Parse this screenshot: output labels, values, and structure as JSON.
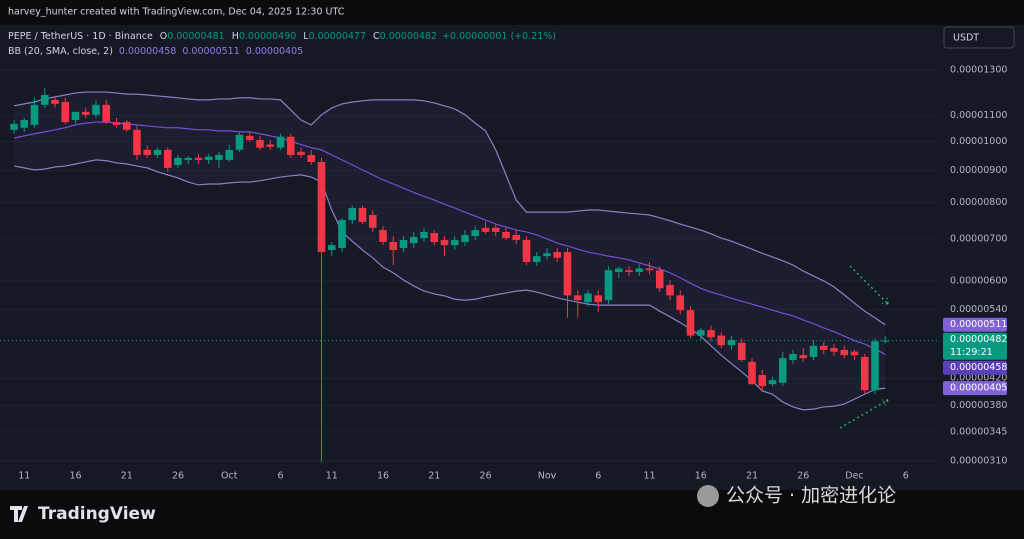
{
  "chart_data": {
    "type": "candlestick",
    "credit": "harvey_hunter created with TradingView.com, Dec 04, 2025 12:30 UTC",
    "currency": "USDT",
    "log_scale": true,
    "grid": true,
    "ylim": [
      3e-06,
      1.533e-05
    ],
    "yticks": [
      {
        "value": 1.3e-05,
        "label": "0.00001300"
      },
      {
        "value": 1.1e-05,
        "label": "0.00001100"
      },
      {
        "value": 1e-05,
        "label": "0.00001000"
      },
      {
        "value": 9e-06,
        "label": "0.00000900"
      },
      {
        "value": 8e-06,
        "label": "0.00000800"
      },
      {
        "value": 7e-06,
        "label": "0.00000700"
      },
      {
        "value": 6e-06,
        "label": "0.00000600"
      },
      {
        "value": 5.4e-06,
        "label": "0.00000540"
      },
      {
        "value": 4.2e-06,
        "label": "0.00000420"
      },
      {
        "value": 3.8e-06,
        "label": "0.00000380"
      },
      {
        "value": 3.45e-06,
        "label": "0.00000345"
      },
      {
        "value": 3.1e-06,
        "label": "0.00000310"
      }
    ],
    "categories": [
      null,
      "11",
      null,
      null,
      null,
      null,
      "16",
      null,
      null,
      null,
      null,
      "21",
      null,
      null,
      null,
      null,
      "26",
      null,
      null,
      null,
      null,
      "Oct",
      null,
      null,
      null,
      null,
      "6",
      null,
      null,
      null,
      null,
      "11",
      null,
      null,
      null,
      null,
      "16",
      null,
      null,
      null,
      null,
      "21",
      null,
      null,
      null,
      null,
      "26",
      null,
      null,
      null,
      null,
      null,
      "Nov",
      null,
      null,
      null,
      null,
      "6",
      null,
      null,
      null,
      null,
      "11",
      null,
      null,
      null,
      null,
      "16",
      null,
      null,
      null,
      null,
      "21",
      null,
      null,
      null,
      null,
      "26",
      null,
      null,
      null,
      null,
      "Dec",
      null,
      null,
      null,
      null,
      "6"
    ],
    "series": [
      {
        "name": "PEPE / TetherUS · 1D · Binance",
        "up_color": "#089981",
        "down_color": "#f23645",
        "open": [
          1.044e-05,
          1.052e-05,
          1.063e-05,
          1.144e-05,
          1.165e-05,
          1.156e-05,
          1.082e-05,
          1.115e-05,
          1.103e-05,
          1.144e-05,
          1.074e-05,
          1.074e-05,
          1.044e-05,
          9.7e-06,
          9.52e-06,
          9.7e-06,
          9.18e-06,
          9.35e-06,
          9.42e-06,
          9.35e-06,
          9.35e-06,
          9.35e-06,
          9.7e-06,
          1.021e-05,
          1.006e-05,
          9.89e-06,
          9.78e-06,
          1.018e-05,
          9.63e-06,
          9.52e-06,
          9.28e-06,
          6.72e-06,
          6.77e-06,
          7.5e-06,
          7.84e-06,
          7.64e-06,
          7.23e-06,
          6.92e-06,
          6.77e-06,
          6.89e-06,
          7.02e-06,
          7.15e-06,
          6.97e-06,
          6.84e-06,
          6.92e-06,
          7.07e-06,
          7.29e-06,
          7.29e-06,
          7.18e-06,
          7.1e-06,
          6.97e-06,
          6.43e-06,
          6.57e-06,
          6.67e-06,
          6.67e-06,
          5.69e-06,
          5.55e-06,
          5.69e-06,
          5.59e-06,
          6.2e-06,
          6.24e-06,
          6.2e-06,
          6.28e-06,
          6.24e-06,
          5.91e-06,
          5.69e-06,
          5.39e-06,
          4.91e-06,
          5.01e-06,
          4.91e-06,
          4.74e-06,
          4.78e-06,
          4.46e-06,
          4.25e-06,
          4.11e-06,
          4.13e-06,
          4.49e-06,
          4.57e-06,
          4.54e-06,
          4.73e-06,
          4.69e-06,
          4.66e-06,
          4.63e-06,
          4.54e-06,
          4.02e-06,
          4.81e-06,
          null,
          null
        ],
        "high": [
          1.082e-05,
          1.09e-05,
          1.174e-05,
          1.217e-05,
          1.182e-05,
          1.174e-05,
          1.115e-05,
          1.132e-05,
          1.165e-05,
          1.165e-05,
          1.09e-05,
          1.082e-05,
          1.059e-05,
          9.85e-06,
          9.78e-06,
          9.78e-06,
          9.52e-06,
          9.49e-06,
          9.56e-06,
          9.56e-06,
          9.63e-06,
          9.89e-06,
          1.036e-05,
          1.036e-05,
          1.021e-05,
          1.006e-05,
          1.029e-05,
          1.029e-05,
          9.78e-06,
          9.7e-06,
          9.42e-06,
          6.92e-06,
          7.56e-06,
          7.92e-06,
          7.92e-06,
          7.78e-06,
          7.34e-06,
          7.07e-06,
          7.07e-06,
          7.18e-06,
          7.29e-06,
          7.23e-06,
          7.07e-06,
          7.07e-06,
          7.23e-06,
          7.34e-06,
          7.45e-06,
          7.39e-06,
          7.29e-06,
          7.23e-06,
          7.07e-06,
          6.67e-06,
          6.77e-06,
          6.77e-06,
          6.77e-06,
          5.8e-06,
          5.8e-06,
          5.8e-06,
          6.33e-06,
          6.33e-06,
          6.33e-06,
          6.38e-06,
          6.43e-06,
          6.33e-06,
          6.02e-06,
          5.8e-06,
          5.47e-06,
          5.05e-06,
          5.09e-06,
          4.97e-06,
          4.9e-06,
          4.86e-06,
          4.52e-06,
          4.33e-06,
          4.22e-06,
          4.63e-06,
          4.66e-06,
          4.69e-06,
          4.83e-06,
          4.8e-06,
          4.76e-06,
          4.73e-06,
          4.66e-06,
          4.59e-06,
          4.86e-06,
          4.9e-06,
          null,
          null
        ],
        "low": [
          1.029e-05,
          1.036e-05,
          1.052e-05,
          1.132e-05,
          1.132e-05,
          1.067e-05,
          1.067e-05,
          1.09e-05,
          1.09e-05,
          1.067e-05,
          1.052e-05,
          1.036e-05,
          9.35e-06,
          9.42e-06,
          9.42e-06,
          8.95e-06,
          9.08e-06,
          9.21e-06,
          9.21e-06,
          9.21e-06,
          9.08e-06,
          9.28e-06,
          9.63e-06,
          9.99e-06,
          9.7e-06,
          9.7e-06,
          9.7e-06,
          9.42e-06,
          9.42e-06,
          9.18e-06,
          3.09e-06,
          6.57e-06,
          6.67e-06,
          7.39e-06,
          7.39e-06,
          7.18e-06,
          6.84e-06,
          6.36e-06,
          6.67e-06,
          6.77e-06,
          6.92e-06,
          6.84e-06,
          6.57e-06,
          6.72e-06,
          6.82e-06,
          6.97e-06,
          7.13e-06,
          7.07e-06,
          6.97e-06,
          6.87e-06,
          6.36e-06,
          6.34e-06,
          6.48e-06,
          6.43e-06,
          5.24e-06,
          5.24e-06,
          5.47e-06,
          5.35e-06,
          5.51e-06,
          6.06e-06,
          6.11e-06,
          6.11e-06,
          6.15e-06,
          5.76e-06,
          5.59e-06,
          5.31e-06,
          4.86e-06,
          4.83e-06,
          4.8e-06,
          4.69e-06,
          4.66e-06,
          4.46e-06,
          4.1e-06,
          3.99e-06,
          4.08e-06,
          4.08e-06,
          4.42e-06,
          4.46e-06,
          4.49e-06,
          4.59e-06,
          4.56e-06,
          4.52e-06,
          4.49e-06,
          3.96e-06,
          3.96e-06,
          4.77e-06,
          null,
          null
        ],
        "close": [
          1.067e-05,
          1.082e-05,
          1.144e-05,
          1.186e-05,
          1.148e-05,
          1.074e-05,
          1.115e-05,
          1.103e-05,
          1.144e-05,
          1.074e-05,
          1.063e-05,
          1.044e-05,
          9.52e-06,
          9.52e-06,
          9.7e-06,
          9.08e-06,
          9.42e-06,
          9.42e-06,
          9.35e-06,
          9.46e-06,
          9.52e-06,
          9.7e-06,
          1.025e-05,
          1.006e-05,
          9.78e-06,
          9.81e-06,
          1.018e-05,
          9.52e-06,
          9.52e-06,
          9.28e-06,
          6.67e-06,
          6.84e-06,
          7.5e-06,
          7.84e-06,
          7.45e-06,
          7.29e-06,
          6.92e-06,
          6.72e-06,
          6.97e-06,
          7.05e-06,
          7.18e-06,
          6.92e-06,
          6.84e-06,
          6.97e-06,
          7.1e-06,
          7.23e-06,
          7.18e-06,
          7.18e-06,
          7.02e-06,
          6.97e-06,
          6.43e-06,
          6.57e-06,
          6.64e-06,
          6.53e-06,
          5.69e-06,
          5.59e-06,
          5.73e-06,
          5.55e-06,
          6.24e-06,
          6.28e-06,
          6.2e-06,
          6.28e-06,
          6.24e-06,
          5.84e-06,
          5.69e-06,
          5.39e-06,
          4.91e-06,
          5.01e-06,
          4.88e-06,
          4.74e-06,
          4.83e-06,
          4.49e-06,
          4.11e-06,
          4.08e-06,
          4.17e-06,
          4.52e-06,
          4.59e-06,
          4.52e-06,
          4.73e-06,
          4.66e-06,
          4.63e-06,
          4.57e-06,
          4.57e-06,
          4.02e-06,
          4.81e-06,
          4.82e-06,
          null,
          null
        ],
        "ohlc_labels": [
          {
            "key": "O",
            "text": "0.00000481"
          },
          {
            "key": "H",
            "text": "0.00000490"
          },
          {
            "key": "L",
            "text": "0.00000477"
          },
          {
            "key": "C",
            "text": "0.00000482"
          }
        ],
        "change": "+0.00000001 (+0.21%)",
        "price_label": "0.00000482",
        "countdown": "11:29:21"
      }
    ],
    "indicator": {
      "name": "BB (20, SMA, close, 2)",
      "fill": "rgba(126,87,194,0.07)",
      "lines": [
        {
          "color": "#7250d8",
          "label": "0.00000458",
          "values": [
            1.013e-05,
            1.021e-05,
            1.029e-05,
            1.036e-05,
            1.044e-05,
            1.052e-05,
            1.063e-05,
            1.07e-05,
            1.074e-05,
            1.074e-05,
            1.07e-05,
            1.067e-05,
            1.063e-05,
            1.059e-05,
            1.055e-05,
            1.052e-05,
            1.052e-05,
            1.048e-05,
            1.044e-05,
            1.044e-05,
            1.04e-05,
            1.04e-05,
            1.036e-05,
            1.036e-05,
            1.029e-05,
            1.021e-05,
            1.013e-05,
            1.002e-05,
            9.89e-06,
            9.78e-06,
            9.7e-06,
            9.52e-06,
            9.35e-06,
            9.18e-06,
            9.01e-06,
            8.85e-06,
            8.69e-06,
            8.56e-06,
            8.43e-06,
            8.3e-06,
            8.18e-06,
            8.07e-06,
            7.95e-06,
            7.84e-06,
            7.72e-06,
            7.61e-06,
            7.5e-06,
            7.39e-06,
            7.31e-06,
            7.23e-06,
            7.18e-06,
            7.1e-06,
            7e-06,
            6.89e-06,
            6.82e-06,
            6.74e-06,
            6.67e-06,
            6.62e-06,
            6.57e-06,
            6.53e-06,
            6.48e-06,
            6.41e-06,
            6.34e-06,
            6.27e-06,
            6.18e-06,
            6.07e-06,
            5.95e-06,
            5.84e-06,
            5.76e-06,
            5.7e-06,
            5.63e-06,
            5.57e-06,
            5.51e-06,
            5.45e-06,
            5.39e-06,
            5.33e-06,
            5.28e-06,
            5.2e-06,
            5.13e-06,
            5.05e-06,
            4.98e-06,
            4.9e-06,
            4.82e-06,
            4.76e-06,
            4.68e-06,
            4.58e-06,
            null,
            null
          ]
        },
        {
          "color": "#8b80c8",
          "label": "0.00000511",
          "values": [
            1.14e-05,
            1.148e-05,
            1.156e-05,
            1.169e-05,
            1.178e-05,
            1.186e-05,
            1.195e-05,
            1.199e-05,
            1.199e-05,
            1.199e-05,
            1.195e-05,
            1.19e-05,
            1.19e-05,
            1.186e-05,
            1.182e-05,
            1.178e-05,
            1.174e-05,
            1.169e-05,
            1.165e-05,
            1.165e-05,
            1.169e-05,
            1.169e-05,
            1.174e-05,
            1.174e-05,
            1.169e-05,
            1.169e-05,
            1.165e-05,
            1.123e-05,
            1.082e-05,
            1.063e-05,
            1.103e-05,
            1.131e-05,
            1.148e-05,
            1.156e-05,
            1.161e-05,
            1.165e-05,
            1.165e-05,
            1.165e-05,
            1.165e-05,
            1.165e-05,
            1.161e-05,
            1.152e-05,
            1.14e-05,
            1.127e-05,
            1.103e-05,
            1.07e-05,
            1.04e-05,
            9.7e-06,
            8.85e-06,
            8.07e-06,
            7.72e-06,
            7.72e-06,
            7.72e-06,
            7.72e-06,
            7.72e-06,
            7.75e-06,
            7.78e-06,
            7.78e-06,
            7.75e-06,
            7.72e-06,
            7.69e-06,
            7.67e-06,
            7.64e-06,
            7.56e-06,
            7.48e-06,
            7.39e-06,
            7.31e-06,
            7.23e-06,
            7.13e-06,
            7.02e-06,
            6.94e-06,
            6.84e-06,
            6.74e-06,
            6.64e-06,
            6.55e-06,
            6.46e-06,
            6.36e-06,
            6.22e-06,
            6.11e-06,
            6e-06,
            5.87e-06,
            5.7e-06,
            5.53e-06,
            5.37e-06,
            5.24e-06,
            5.11e-06,
            null,
            null
          ]
        },
        {
          "color": "#8b80c8",
          "label": "0.00000405",
          "values": [
            9.14e-06,
            9.08e-06,
            9.01e-06,
            9.04e-06,
            9.11e-06,
            9.14e-06,
            9.21e-06,
            9.28e-06,
            9.35e-06,
            9.32e-06,
            9.25e-06,
            9.21e-06,
            9.14e-06,
            9.08e-06,
            8.95e-06,
            8.85e-06,
            8.75e-06,
            8.62e-06,
            8.53e-06,
            8.56e-06,
            8.56e-06,
            8.59e-06,
            8.62e-06,
            8.62e-06,
            8.66e-06,
            8.72e-06,
            8.78e-06,
            8.82e-06,
            8.85e-06,
            8.78e-06,
            8.62e-06,
            7.78e-06,
            7.18e-06,
            6.94e-06,
            6.72e-06,
            6.53e-06,
            6.31e-06,
            6.18e-06,
            6.02e-06,
            5.89e-06,
            5.78e-06,
            5.72e-06,
            5.68e-06,
            5.61e-06,
            5.59e-06,
            5.61e-06,
            5.66e-06,
            5.7e-06,
            5.74e-06,
            5.78e-06,
            5.8e-06,
            5.76e-06,
            5.7e-06,
            5.64e-06,
            5.59e-06,
            5.55e-06,
            5.51e-06,
            5.49e-06,
            5.49e-06,
            5.49e-06,
            5.49e-06,
            5.49e-06,
            5.49e-06,
            5.37e-06,
            5.26e-06,
            5.15e-06,
            5.03e-06,
            4.9e-06,
            4.73e-06,
            4.57e-06,
            4.43e-06,
            4.3e-06,
            4.16e-06,
            4.01e-06,
            3.96e-06,
            3.85e-06,
            3.78e-06,
            3.74e-06,
            3.75e-06,
            3.78e-06,
            3.79e-06,
            3.82e-06,
            3.89e-06,
            3.96e-06,
            4.03e-06,
            4.05e-06,
            null,
            null
          ]
        }
      ]
    },
    "branding": "TradingView",
    "watermark": "公众号 · 加密进化论"
  }
}
